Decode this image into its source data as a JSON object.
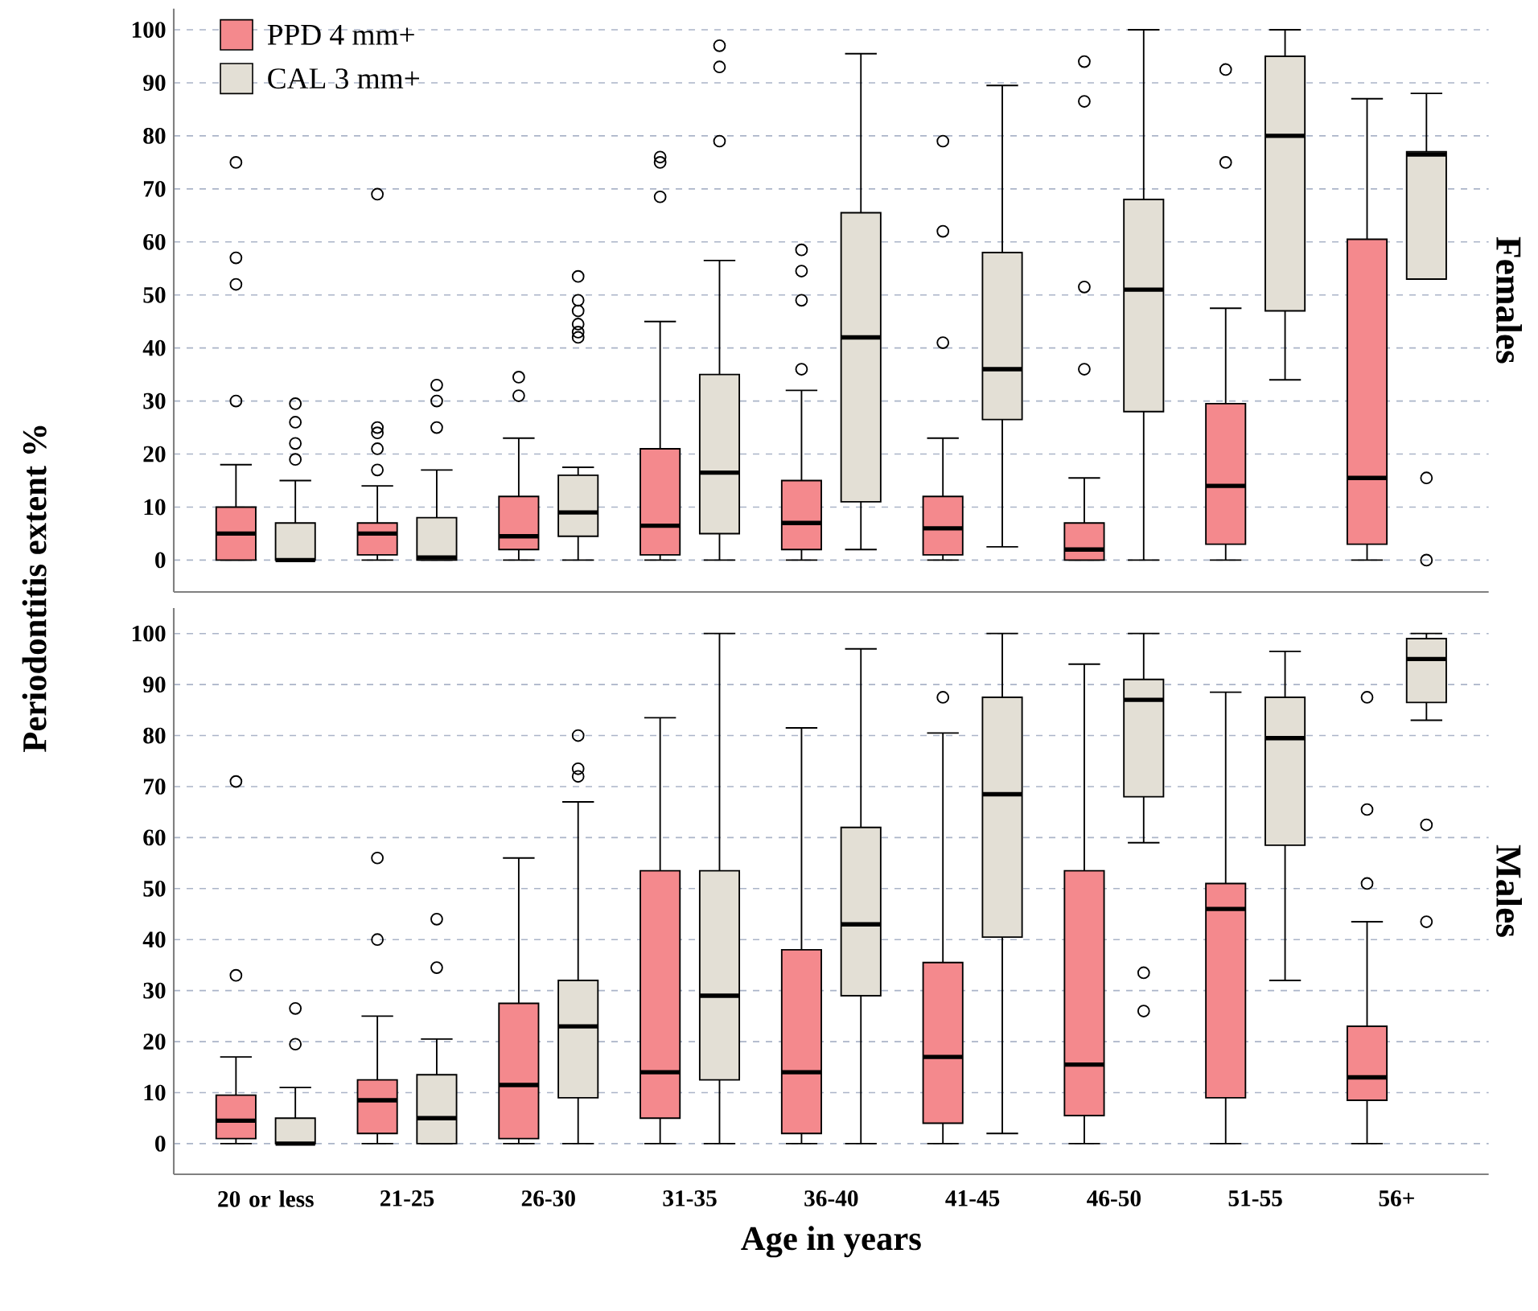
{
  "chart_data": [
    {
      "type": "box",
      "title": "Females",
      "ylabel": "Periodontitis extent %",
      "categories": [
        null,
        null,
        null,
        null,
        null,
        null,
        null,
        null,
        null
      ],
      "ylim": [
        -6,
        104
      ],
      "yticks": [
        0,
        10,
        20,
        30,
        40,
        50,
        60,
        70,
        80,
        90,
        100
      ],
      "grid": "y",
      "legend": "top left",
      "tick_labels": "y",
      "series": [
        {
          "name": "PPD 4 mm+",
          "color": "#f4898d",
          "boxes": [
            {
              "low": 0,
              "q1": 0,
              "median": 5,
              "q3": 10,
              "high": 18,
              "outliers": [
                30,
                52,
                57,
                75
              ]
            },
            {
              "low": 0,
              "q1": 1,
              "median": 5,
              "q3": 7,
              "high": 14,
              "outliers": [
                17,
                21,
                24,
                25,
                69
              ]
            },
            {
              "low": 0,
              "q1": 2,
              "median": 4.5,
              "q3": 12,
              "high": 23,
              "outliers": [
                31,
                34.5
              ]
            },
            {
              "low": 0,
              "q1": 1,
              "median": 6.5,
              "q3": 21,
              "high": 45,
              "outliers": [
                68.5,
                75,
                76
              ]
            },
            {
              "low": 0,
              "q1": 2,
              "median": 7,
              "q3": 15,
              "high": 32,
              "outliers": [
                36,
                49,
                54.5,
                58.5
              ]
            },
            {
              "low": 0,
              "q1": 1,
              "median": 6,
              "q3": 12,
              "high": 23,
              "outliers": [
                41,
                62,
                79
              ]
            },
            {
              "low": 0,
              "q1": 0,
              "median": 2,
              "q3": 7,
              "high": 15.5,
              "outliers": [
                36,
                51.5,
                86.5,
                94
              ]
            },
            {
              "low": 0,
              "q1": 3,
              "median": 14,
              "q3": 29.5,
              "high": 47.5,
              "outliers": [
                75,
                92.5
              ]
            },
            {
              "low": 0,
              "q1": 3,
              "median": 15.5,
              "q3": 60.5,
              "high": 87
            }
          ]
        },
        {
          "name": "CAL 3 mm+",
          "color": "#e3dfd5",
          "boxes": [
            {
              "low": 0,
              "q1": 0,
              "median": 0,
              "q3": 7,
              "high": 15,
              "outliers": [
                19,
                22,
                26,
                29.5
              ]
            },
            {
              "low": 0,
              "q1": 0,
              "median": 0.5,
              "q3": 8,
              "high": 17,
              "outliers": [
                25,
                30,
                33
              ]
            },
            {
              "low": 0,
              "q1": 4.5,
              "median": 9,
              "q3": 16,
              "high": 17.5,
              "outliers": [
                42,
                43,
                44.5,
                47,
                49,
                53.5
              ]
            },
            {
              "low": 0,
              "q1": 5,
              "median": 16.5,
              "q3": 35,
              "high": 56.5,
              "outliers": [
                79,
                93,
                97
              ]
            },
            {
              "low": 2,
              "q1": 11,
              "median": 42,
              "q3": 65.5,
              "high": 95.5
            },
            {
              "low": 2.5,
              "q1": 26.5,
              "median": 36,
              "q3": 58,
              "high": 89.5
            },
            {
              "low": 0,
              "q1": 28,
              "median": 51,
              "q3": 68,
              "high": 100
            },
            {
              "low": 34,
              "q1": 47,
              "median": 80,
              "q3": 95,
              "high": 100
            },
            {
              "low": 53,
              "q1": 53,
              "median": 76.5,
              "q3": 77,
              "high": 88,
              "outliers": [
                0,
                15.5
              ]
            }
          ]
        }
      ]
    },
    {
      "type": "box",
      "title": "Males",
      "xlabel": "Age in years",
      "categories": [
        "20 or less",
        "21-25",
        "26-30",
        "31-35",
        "36-40",
        "41-45",
        "46-50",
        "51-55",
        "56+"
      ],
      "ylim": [
        -6,
        105
      ],
      "yticks": [
        0,
        10,
        20,
        30,
        40,
        50,
        60,
        70,
        80,
        90,
        100
      ],
      "grid": "y",
      "series": [
        {
          "color": "#f4898d",
          "boxes": [
            {
              "low": 0,
              "q1": 1,
              "median": 4.5,
              "q3": 9.5,
              "high": 17,
              "outliers": [
                33,
                71
              ]
            },
            {
              "low": 0,
              "q1": 2,
              "median": 8.5,
              "q3": 12.5,
              "high": 25,
              "outliers": [
                40,
                56
              ]
            },
            {
              "low": 0,
              "q1": 1,
              "median": 11.5,
              "q3": 27.5,
              "high": 56
            },
            {
              "low": 0,
              "q1": 5,
              "median": 14,
              "q3": 53.5,
              "high": 83.5
            },
            {
              "low": 0,
              "q1": 2,
              "median": 14,
              "q3": 38,
              "high": 81.5
            },
            {
              "low": 0,
              "q1": 4,
              "median": 17,
              "q3": 35.5,
              "high": 80.5,
              "outliers": [
                87.5
              ]
            },
            {
              "low": 0,
              "q1": 5.5,
              "median": 15.5,
              "q3": 53.5,
              "high": 94
            },
            {
              "low": 0,
              "q1": 9,
              "median": 46,
              "q3": 51,
              "high": 88.5
            },
            {
              "low": 0,
              "q1": 8.5,
              "median": 13,
              "q3": 23,
              "high": 43.5,
              "outliers": [
                51,
                65.5,
                87.5
              ]
            }
          ]
        },
        {
          "color": "#e3dfd5",
          "boxes": [
            {
              "low": 0,
              "q1": 0,
              "median": 0,
              "q3": 5,
              "high": 11,
              "outliers": [
                19.5,
                26.5
              ]
            },
            {
              "low": 0,
              "q1": 0,
              "median": 5,
              "q3": 13.5,
              "high": 20.5,
              "outliers": [
                34.5,
                44
              ]
            },
            {
              "low": 0,
              "q1": 9,
              "median": 23,
              "q3": 32,
              "high": 67,
              "outliers": [
                72,
                73.5,
                80
              ]
            },
            {
              "low": 0,
              "q1": 12.5,
              "median": 29,
              "q3": 53.5,
              "high": 100
            },
            {
              "low": 0,
              "q1": 29,
              "median": 43,
              "q3": 62,
              "high": 97
            },
            {
              "low": 2,
              "q1": 40.5,
              "median": 68.5,
              "q3": 87.5,
              "high": 100
            },
            {
              "low": 59,
              "q1": 68,
              "median": 87,
              "q3": 91,
              "high": 100,
              "outliers": [
                26,
                33.5
              ]
            },
            {
              "low": 32,
              "q1": 58.5,
              "median": 79.5,
              "q3": 87.5,
              "high": 96.5
            },
            {
              "low": 83,
              "q1": 86.5,
              "median": 95,
              "q3": 99,
              "high": 100,
              "outliers": [
                43.5,
                62.5
              ]
            }
          ]
        }
      ]
    }
  ]
}
